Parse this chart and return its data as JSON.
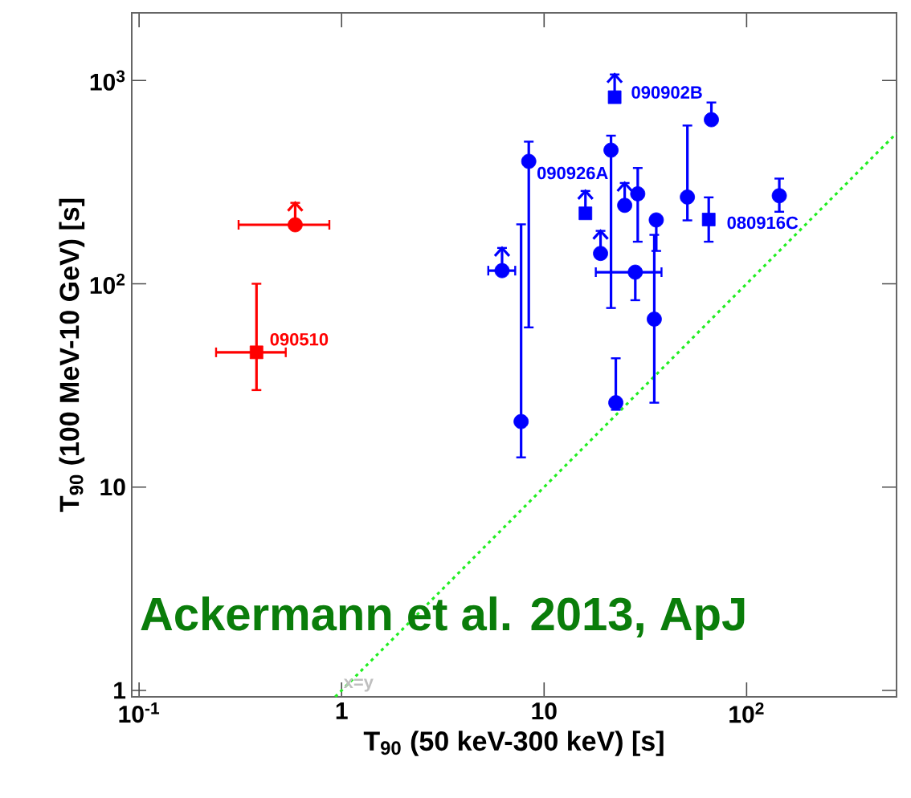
{
  "chart_data": {
    "type": "scatter",
    "log": "xy",
    "xlabel": "T$_{90}$ (50 keV-300 keV) [s]",
    "ylabel": "T$_{90}$ (100 MeV-10 GeV) [s]",
    "xlim": [
      0.092,
      550
    ],
    "ylim": [
      0.93,
      2150
    ],
    "xticks": [
      {
        "value": 0.1,
        "label": "10$^{-1}$"
      },
      1,
      10,
      {
        "value": 100,
        "label": "10$^{2}$"
      }
    ],
    "yticks": [
      1,
      10,
      {
        "value": 100,
        "label": "10$^{2}$"
      },
      {
        "value": 1000,
        "label": "10$^{3}$"
      }
    ],
    "series": [
      {
        "type": "line",
        "color": "#22ee22",
        "line_style": "dotted",
        "marker": "none",
        "x": [
          0.93,
          550
        ],
        "values": [
          0.93,
          550
        ]
      },
      {
        "color": "#ff0000",
        "marker": "square",
        "x": [
          0.38
        ],
        "values": [
          46
        ],
        "errors": [
          [
            30,
            100
          ]
        ],
        "xerrors": [
          [
            0.24,
            0.53
          ]
        ]
      },
      {
        "color": "#ff0000",
        "marker": "circle",
        "x": [
          0.59
        ],
        "values": [
          195
        ],
        "errors": [
          [
            195,
            250
          ]
        ],
        "xerrors": [
          [
            0.31,
            0.87
          ]
        ]
      },
      {
        "color": "#0000ff",
        "marker": "circle",
        "x": [
          7.7,
          8.4,
          21.4,
          22.6,
          29,
          35.8,
          35,
          51,
          67,
          145
        ],
        "values": [
          21,
          400,
          454,
          26,
          277,
          206,
          67,
          267,
          641,
          271
        ],
        "errors": [
          [
            14,
            196
          ],
          [
            61,
            500
          ],
          [
            76,
            535
          ],
          [
            24,
            43
          ],
          [
            161,
            371
          ],
          [
            145,
            206
          ],
          [
            26,
            174
          ],
          [
            205,
            600
          ],
          [
            641,
            779
          ],
          [
            226,
            329
          ]
        ]
      },
      {
        "color": "#0000ff",
        "marker": "circle",
        "x": [
          28.2
        ],
        "values": [
          114
        ],
        "errors": [
          [
            83,
            114
          ]
        ],
        "xerrors": [
          [
            18,
            38
          ]
        ]
      },
      {
        "color": "#0000ff",
        "marker": "circle",
        "x": [
          6.2
        ],
        "values": [
          116
        ],
        "errors": [
          [
            116,
            150
          ]
        ],
        "xerrors": [
          [
            5.3,
            7.2
          ]
        ]
      },
      {
        "color": "#0000ff",
        "marker": "circle",
        "x": [
          19,
          25
        ],
        "values": [
          141,
          243
        ],
        "errors": [
          [
            141,
            182
          ],
          [
            243,
            313
          ]
        ]
      },
      {
        "color": "#0000ff",
        "marker": "square",
        "x": [
          16,
          22.3
        ],
        "values": [
          222,
          827
        ],
        "errors": [
          [
            222,
            286
          ],
          [
            827,
            1070
          ]
        ]
      },
      {
        "color": "#0000ff",
        "marker": "square",
        "x": [
          65
        ],
        "values": [
          207
        ],
        "errors": [
          [
            161,
            266
          ]
        ]
      }
    ],
    "annotations": [
      {
        "text": "090510",
        "x": 0.38,
        "y": 46
      },
      {
        "text": "090902B",
        "x": 22.3,
        "y": 827
      },
      {
        "text": "090926A",
        "x": 16,
        "y": 222
      },
      {
        "text": "080916C",
        "x": 65,
        "y": 207
      },
      {
        "text": "x=y",
        "x": 1,
        "y": 1
      },
      "Ackermann et al. 2013, ApJ"
    ]
  }
}
